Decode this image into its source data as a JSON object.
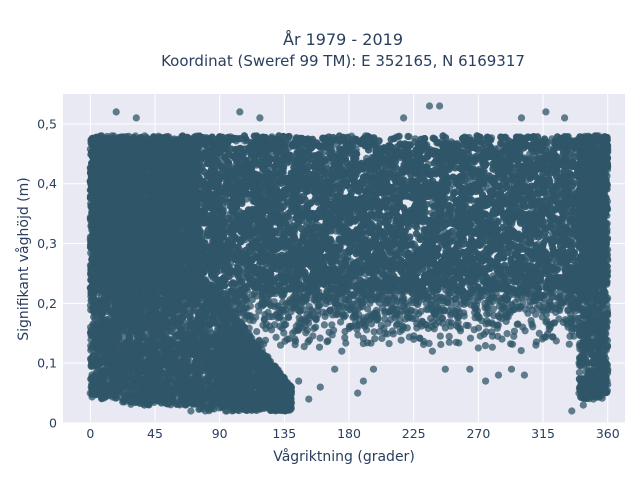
{
  "chart_data": {
    "type": "scatter",
    "title_line1": "År 1979 - 2019",
    "title_line2": "Koordinat (Sweref 99 TM): E 352165, N 6169317",
    "xlabel": "Vågriktning (grader)",
    "ylabel": "Signifikant våghöjd (m)",
    "xlim": [
      -19,
      372
    ],
    "ylim": [
      0,
      0.55
    ],
    "xticks": [
      0,
      45,
      90,
      135,
      180,
      225,
      270,
      315,
      360
    ],
    "xtick_labels": [
      "0",
      "45",
      "90",
      "135",
      "180",
      "225",
      "270",
      "315",
      "360"
    ],
    "yticks": [
      0,
      0.1,
      0.2,
      0.3,
      0.4,
      0.5
    ],
    "ytick_labels": [
      "0",
      "0,1",
      "0,2",
      "0,3",
      "0,4",
      "0,5"
    ],
    "grid": true,
    "legend": "none",
    "marker_color": "#2f5568",
    "plot_bg": "#e8e9f2",
    "dense_regions": [
      {
        "x": [
          0,
          360
        ],
        "y": [
          0.22,
          0.48
        ]
      },
      {
        "x": [
          0,
          22
        ],
        "y": [
          0.04,
          0.48
        ]
      },
      {
        "x": [
          22,
          75
        ],
        "y": [
          0.03,
          0.48
        ]
      },
      {
        "x": [
          340,
          360
        ],
        "y": [
          0.04,
          0.48
        ]
      }
    ],
    "sample_points": [
      {
        "x": 18,
        "y": 0.52
      },
      {
        "x": 32,
        "y": 0.51
      },
      {
        "x": 104,
        "y": 0.52
      },
      {
        "x": 218,
        "y": 0.51
      },
      {
        "x": 236,
        "y": 0.53
      },
      {
        "x": 243,
        "y": 0.53
      },
      {
        "x": 317,
        "y": 0.52
      },
      {
        "x": 300,
        "y": 0.51
      },
      {
        "x": 330,
        "y": 0.51
      },
      {
        "x": 118,
        "y": 0.51
      },
      {
        "x": 160,
        "y": 0.06
      },
      {
        "x": 170,
        "y": 0.09
      },
      {
        "x": 186,
        "y": 0.05
      },
      {
        "x": 190,
        "y": 0.07
      },
      {
        "x": 197,
        "y": 0.09
      },
      {
        "x": 247,
        "y": 0.09
      },
      {
        "x": 264,
        "y": 0.09
      },
      {
        "x": 275,
        "y": 0.07
      },
      {
        "x": 284,
        "y": 0.08
      },
      {
        "x": 293,
        "y": 0.09
      },
      {
        "x": 302,
        "y": 0.08
      },
      {
        "x": 310,
        "y": 0.13
      },
      {
        "x": 320,
        "y": 0.16
      },
      {
        "x": 335,
        "y": 0.02
      },
      {
        "x": 343,
        "y": 0.03
      },
      {
        "x": 350,
        "y": 0.04
      },
      {
        "x": 145,
        "y": 0.07
      },
      {
        "x": 152,
        "y": 0.04
      },
      {
        "x": 175,
        "y": 0.12
      },
      {
        "x": 205,
        "y": 0.15
      },
      {
        "x": 225,
        "y": 0.14
      },
      {
        "x": 238,
        "y": 0.12
      },
      {
        "x": 256,
        "y": 0.16
      },
      {
        "x": 120,
        "y": 0.04
      },
      {
        "x": 95,
        "y": 0.02
      },
      {
        "x": 70,
        "y": 0.02
      },
      {
        "x": 80,
        "y": 0.02
      },
      {
        "x": 100,
        "y": 0.03
      },
      {
        "x": 125,
        "y": 0.03
      }
    ]
  }
}
